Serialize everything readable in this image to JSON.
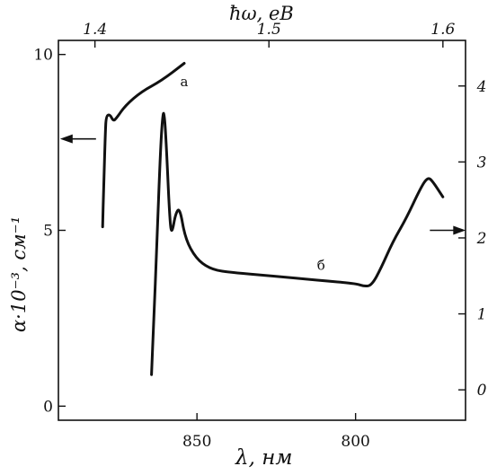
{
  "chart_data": {
    "type": "line",
    "xlabel": "λ, нм",
    "x_top_label": "ħω, eB",
    "ylabel": "α·10⁻³, см⁻¹",
    "x_ticks": [
      {
        "value": 850,
        "label": "850"
      },
      {
        "value": 800,
        "label": "800"
      }
    ],
    "x_top_ticks": [
      {
        "value": 1.4,
        "label": "1.4"
      },
      {
        "value": 1.5,
        "label": "1.5"
      },
      {
        "value": 1.6,
        "label": "1.6"
      }
    ],
    "y_left_ticks": [
      {
        "value": 0,
        "label": "0"
      },
      {
        "value": 5,
        "label": "5"
      },
      {
        "value": 10,
        "label": "10"
      }
    ],
    "y_right_ticks": [
      {
        "value": 0,
        "label": "0"
      },
      {
        "value": 1,
        "label": "1"
      },
      {
        "value": 2,
        "label": "2"
      },
      {
        "value": 3,
        "label": "3"
      },
      {
        "value": 4,
        "label": "4"
      }
    ],
    "ylim_left": [
      -0.4,
      10.4
    ],
    "ylim_right": [
      -0.4,
      4.6
    ],
    "xlim_top_ev": [
      1.379,
      1.613
    ],
    "series": [
      {
        "name": "а",
        "axis": "left",
        "points": [
          [
            1.4044,
            5.1
          ],
          [
            1.4051,
            6.3
          ],
          [
            1.4059,
            7.7
          ],
          [
            1.4064,
            8.25
          ],
          [
            1.4086,
            8.3
          ],
          [
            1.4106,
            8.1
          ],
          [
            1.4125,
            8.2
          ],
          [
            1.4175,
            8.55
          ],
          [
            1.4269,
            8.95
          ],
          [
            1.4381,
            9.25
          ],
          [
            1.4513,
            9.75
          ]
        ]
      },
      {
        "name": "б",
        "axis": "right",
        "points": [
          [
            1.4325,
            0.2
          ],
          [
            1.4338,
            0.9
          ],
          [
            1.4356,
            1.9
          ],
          [
            1.4375,
            3.1
          ],
          [
            1.439,
            3.65
          ],
          [
            1.44,
            3.63
          ],
          [
            1.4413,
            3.1
          ],
          [
            1.4431,
            2.2
          ],
          [
            1.4442,
            2.05
          ],
          [
            1.4463,
            2.32
          ],
          [
            1.4488,
            2.4
          ],
          [
            1.4519,
            1.99
          ],
          [
            1.4581,
            1.73
          ],
          [
            1.4656,
            1.6
          ],
          [
            1.475,
            1.55
          ],
          [
            1.5019,
            1.5
          ],
          [
            1.5288,
            1.44
          ],
          [
            1.55,
            1.4
          ],
          [
            1.555,
            1.36
          ],
          [
            1.5592,
            1.38
          ],
          [
            1.5644,
            1.6
          ],
          [
            1.5712,
            1.95
          ],
          [
            1.5788,
            2.25
          ],
          [
            1.5872,
            2.66
          ],
          [
            1.5913,
            2.8
          ],
          [
            1.594,
            2.75
          ],
          [
            1.6,
            2.54
          ]
        ]
      }
    ],
    "annotations": [
      {
        "text": "а",
        "x": 1.4513,
        "y": 9.1,
        "axis": "left"
      },
      {
        "text": "б",
        "x": 1.53,
        "y": 1.58,
        "axis": "right"
      }
    ],
    "axis_arrows": [
      {
        "points_to": "left",
        "x": 1.4006,
        "y": 7.6,
        "axis": "left"
      },
      {
        "points_to": "right",
        "x": 1.5925,
        "y": 2.1,
        "axis": "right"
      }
    ],
    "grid": false
  }
}
